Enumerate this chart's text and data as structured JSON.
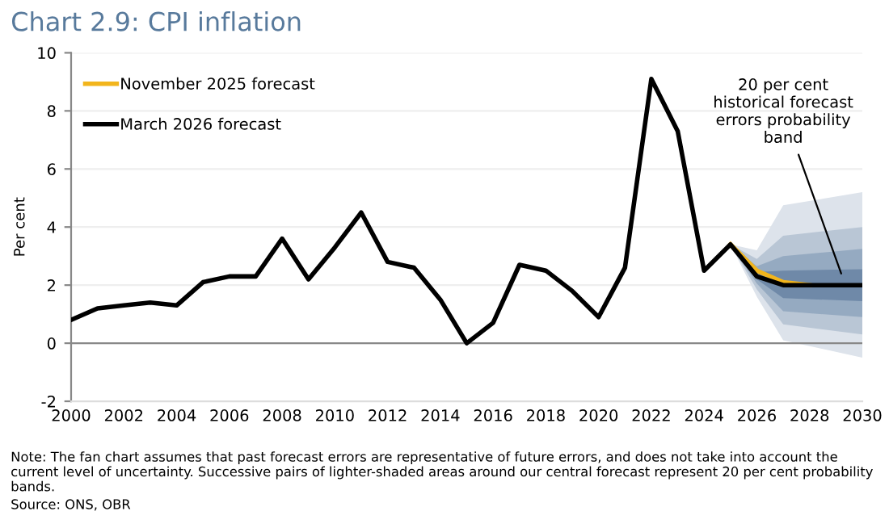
{
  "chart_data": {
    "type": "line",
    "title": "Chart 2.9: CPI inflation",
    "ylabel": "Per cent",
    "x": [
      2000,
      2001,
      2002,
      2003,
      2004,
      2005,
      2006,
      2007,
      2008,
      2009,
      2010,
      2011,
      2012,
      2013,
      2014,
      2015,
      2016,
      2017,
      2018,
      2019,
      2020,
      2021,
      2022,
      2023,
      2024,
      2025,
      2026,
      2027,
      2028,
      2029,
      2030
    ],
    "series": [
      {
        "color": "#dde3eb",
        "x": [
          2025,
          2026,
          2027,
          2030
        ],
        "values": [
          null,
          null,
          null,
          null
        ],
        "lower": [
          3.4,
          1.6,
          0.1,
          -0.5
        ],
        "upper": [
          3.4,
          3.2,
          4.75,
          5.2
        ]
      },
      {
        "color": "#b9c6d5",
        "x": [
          2025,
          2026,
          2027,
          2030
        ],
        "values": [
          null,
          null,
          null,
          null
        ],
        "lower": [
          3.4,
          1.85,
          0.65,
          0.3
        ],
        "upper": [
          3.4,
          2.9,
          3.7,
          4.0
        ]
      },
      {
        "color": "#95aac1",
        "x": [
          2025,
          2026,
          2027,
          2030
        ],
        "values": [
          null,
          null,
          null,
          null
        ],
        "lower": [
          3.4,
          2.05,
          1.1,
          0.9
        ],
        "upper": [
          3.4,
          2.65,
          3.0,
          3.25
        ]
      },
      {
        "color": "#6f89a8",
        "x": [
          2025,
          2026,
          2027,
          2030
        ],
        "values": [
          null,
          null,
          null,
          null
        ],
        "lower": [
          3.4,
          2.2,
          1.55,
          1.45
        ],
        "upper": [
          3.4,
          2.45,
          2.5,
          2.55
        ]
      },
      {
        "name": "November 2025 forecast",
        "color": "#f2b51c",
        "x": [
          2025,
          2026,
          2027,
          2028
        ],
        "values": [
          3.4,
          2.5,
          2.1,
          2.0
        ]
      },
      {
        "name": "March 2026 forecast",
        "color": "#000000",
        "values": [
          0.8,
          1.2,
          1.3,
          1.4,
          1.3,
          2.1,
          2.3,
          2.3,
          3.6,
          2.2,
          3.3,
          4.5,
          2.8,
          2.6,
          1.5,
          0.0,
          0.7,
          2.7,
          2.5,
          1.8,
          0.9,
          2.6,
          9.1,
          7.3,
          2.5,
          3.4,
          2.3,
          2.0,
          2.0,
          2.0,
          2.0
        ]
      }
    ],
    "xlim": [
      2000,
      2030
    ],
    "xticks": [
      2000,
      2002,
      2004,
      2006,
      2008,
      2010,
      2012,
      2014,
      2016,
      2018,
      2020,
      2022,
      2024,
      2026,
      2028,
      2030
    ],
    "ylim": [
      -2,
      10
    ],
    "yticks": [
      -2,
      0,
      2,
      4,
      6,
      8,
      10
    ],
    "grid": "y",
    "legend": "top left",
    "marker": "none",
    "line_style": "solid",
    "annotations": [
      {
        "text": "20 per cent\nhistorical forecast\nerrors probability\nband",
        "x": 2029.2,
        "y": 2.4
      },
      "Note: The fan chart assumes that past forecast errors are representative of future errors, and does not take into account the current level of uncertainty. Successive pairs of lighter-shaded areas around our central forecast represent 20 per cent probability bands.",
      "Source: ONS, OBR"
    ]
  }
}
